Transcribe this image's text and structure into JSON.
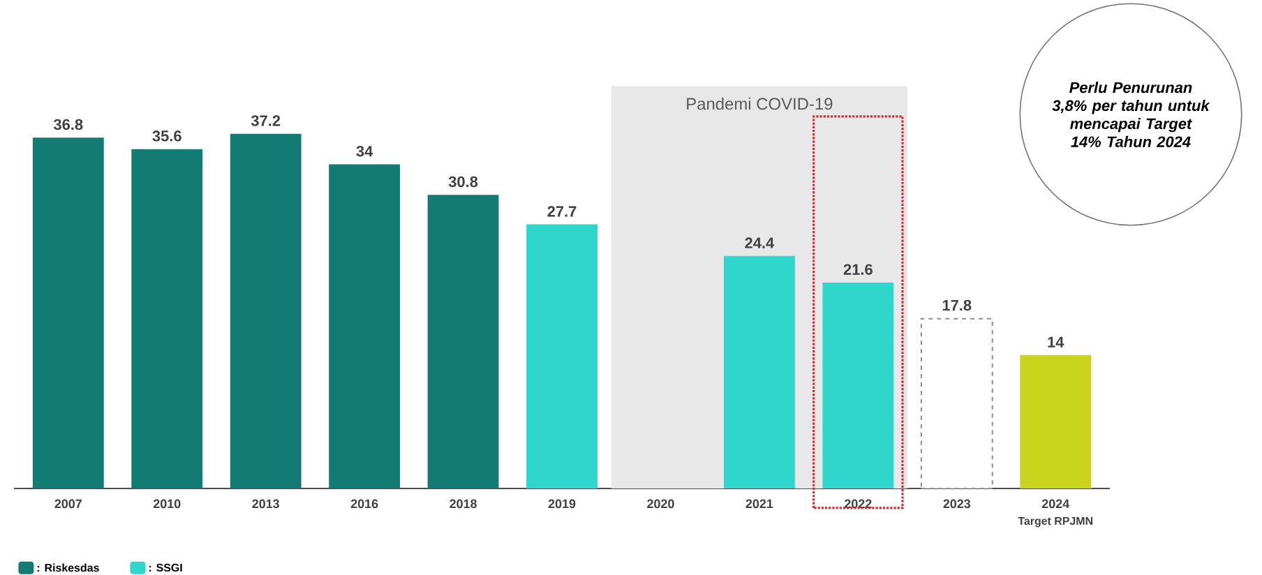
{
  "chart_data": {
    "type": "bar",
    "categories": [
      "2007",
      "2010",
      "2013",
      "2016",
      "2018",
      "2019",
      "2020",
      "2021",
      "2022",
      "2023",
      "2024"
    ],
    "series": [
      {
        "name": ": Riskesdas",
        "color": "#137b74",
        "values": [
          36.8,
          35.6,
          37.2,
          34,
          30.8,
          null,
          null,
          null,
          null,
          null,
          null
        ]
      },
      {
        "name": ": SSGI",
        "color": "#2fd6cb",
        "values": [
          null,
          null,
          null,
          null,
          null,
          27.7,
          null,
          24.4,
          21.6,
          null,
          null
        ]
      },
      {
        "color": "#ffffff",
        "line_style": "dashed",
        "values": [
          null,
          null,
          null,
          null,
          null,
          null,
          null,
          null,
          null,
          17.8,
          null
        ]
      },
      {
        "color": "#c9d41c",
        "values": [
          null,
          null,
          null,
          null,
          null,
          null,
          null,
          null,
          null,
          null,
          14
        ]
      }
    ],
    "data_labels": true,
    "legend": "bottom left",
    "bands": [
      {
        "axis": "x",
        "from": "2020",
        "to": "2022",
        "label": "Pandemi COVID-19",
        "color": "#e8e8e8"
      }
    ],
    "annotations": [
      "Perlu Penurunan 3,8% per tahun untuk mencapai Target 14% Tahun 2024",
      "Target RPJMN"
    ]
  }
}
